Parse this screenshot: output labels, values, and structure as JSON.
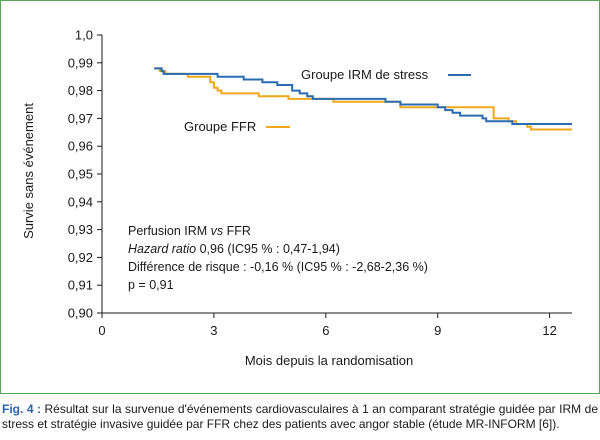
{
  "chart_data": {
    "type": "line",
    "xlabel": "Mois depuis la randomisation",
    "ylabel": "Survie sans événement",
    "xlim": [
      0,
      12.6
    ],
    "ylim": [
      0.9,
      1.0
    ],
    "x_ticks": [
      0,
      3,
      6,
      9,
      12
    ],
    "x_tick_labels": [
      "0",
      "3",
      "6",
      "9",
      "12"
    ],
    "y_ticks": [
      0.9,
      0.91,
      0.92,
      0.93,
      0.94,
      0.95,
      0.96,
      0.97,
      0.98,
      0.99,
      1.0
    ],
    "y_tick_labels": [
      "0,90",
      "0,91",
      "0,92",
      "0,93",
      "0,94",
      "0,95",
      "0,96",
      "0,97",
      "0,98",
      "0,99",
      "1,0"
    ],
    "grid": false,
    "series": [
      {
        "name": "Groupe IRM de stress",
        "color": "#2b6cb0",
        "steps": [
          [
            1.4,
            0.988
          ],
          [
            1.6,
            0.987
          ],
          [
            1.65,
            0.986
          ],
          [
            3.1,
            0.985
          ],
          [
            3.8,
            0.984
          ],
          [
            4.3,
            0.983
          ],
          [
            4.7,
            0.982
          ],
          [
            5.1,
            0.98
          ],
          [
            5.3,
            0.979
          ],
          [
            5.5,
            0.978
          ],
          [
            5.65,
            0.977
          ],
          [
            7.6,
            0.976
          ],
          [
            8.0,
            0.975
          ],
          [
            9.0,
            0.974
          ],
          [
            9.2,
            0.973
          ],
          [
            9.4,
            0.972
          ],
          [
            9.6,
            0.971
          ],
          [
            10.2,
            0.97
          ],
          [
            10.3,
            0.969
          ],
          [
            11.0,
            0.968
          ],
          [
            12.6,
            0.968
          ]
        ]
      },
      {
        "name": "Groupe FFR",
        "color": "#f0a81c",
        "steps": [
          [
            1.4,
            0.988
          ],
          [
            1.55,
            0.987
          ],
          [
            1.7,
            0.986
          ],
          [
            2.3,
            0.985
          ],
          [
            2.9,
            0.983
          ],
          [
            3.0,
            0.981
          ],
          [
            3.1,
            0.98
          ],
          [
            3.2,
            0.979
          ],
          [
            4.2,
            0.978
          ],
          [
            5.0,
            0.977
          ],
          [
            6.2,
            0.976
          ],
          [
            8.0,
            0.974
          ],
          [
            8.8,
            0.974
          ],
          [
            9.0,
            0.974
          ],
          [
            10.5,
            0.972
          ],
          [
            10.5,
            0.97
          ],
          [
            10.9,
            0.969
          ],
          [
            11.1,
            0.968
          ],
          [
            11.4,
            0.967
          ],
          [
            11.5,
            0.966
          ],
          [
            12.6,
            0.966
          ]
        ]
      }
    ],
    "legend": [
      {
        "label": "Groupe IRM de stress",
        "color": "#2b6cb0",
        "placement": "top-right"
      },
      {
        "label": "Groupe FFR",
        "color": "#f0a81c",
        "placement": "middle-left"
      }
    ],
    "annotation": {
      "line1_plain": "Perfusion IRM ",
      "line1_italic": "vs",
      "line1_tail": " FFR",
      "line2_italic": "Hazard ratio",
      "line2_plain": " 0,96 (IC95 % : 0,47-1,94)",
      "line3": "Différence de risque : -0,16 % (IC95 % : -2,68-2,36 %)",
      "line4": "p = 0,91"
    }
  },
  "caption": {
    "label": "Fig. 4 :",
    "text": " Résultat sur la survenue d'événements cardiovasculaires à 1 an comparant stratégie guidée par IRM de stress et stratégie invasive guidée par FFR chez des patients avec angor stable (étude MR-INFORM [6])."
  }
}
